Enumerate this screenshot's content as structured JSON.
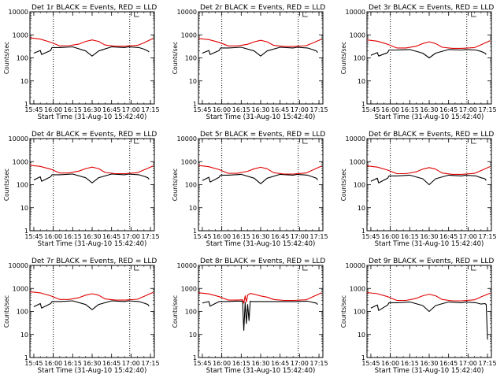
{
  "figure": {
    "background": "#ffffff",
    "event_color": "#000000",
    "lld_color": "#e00000"
  },
  "chart_data": [
    {
      "type": "line",
      "title": "Det 1r BLACK = Events, RED = LLD",
      "xlabel": "Start Time (31-Aug-10 15:42:40)",
      "ylabel": "Counts/sec",
      "yscale": "log",
      "ylim": [
        1,
        10000
      ],
      "xticklabels": [
        "15:45",
        "16:00",
        "16:15",
        "16:30",
        "16:45",
        "17:00",
        "17:15"
      ],
      "yticklabels": [
        "1",
        "10",
        "100",
        "1000",
        "10000"
      ],
      "vlines": [
        "16:00",
        "16:59"
      ],
      "series": [
        {
          "name": "Events",
          "color": "#000000",
          "x": [
            "15:45",
            "15:50",
            "15:51",
            "15:58",
            "15:59",
            "16:05",
            "16:15",
            "16:25",
            "16:30",
            "16:35",
            "16:45",
            "16:55",
            "16:58",
            "17:06",
            "17:10",
            "17:13",
            "17:14"
          ],
          "y": [
            160,
            210,
            140,
            210,
            280,
            280,
            300,
            200,
            120,
            200,
            300,
            280,
            300,
            280,
            240,
            200,
            180
          ]
        },
        {
          "name": "LLD",
          "color": "#e00000",
          "x": [
            "15:42",
            "15:50",
            "15:58",
            "16:05",
            "16:12",
            "16:20",
            "16:25",
            "16:30",
            "16:35",
            "16:40",
            "16:48",
            "16:55",
            "17:05",
            "17:10",
            "17:17"
          ],
          "y": [
            750,
            650,
            480,
            330,
            340,
            400,
            520,
            600,
            520,
            360,
            320,
            320,
            350,
            450,
            700
          ]
        }
      ]
    },
    {
      "type": "line",
      "title": "Det 2r BLACK = Events, RED = LLD",
      "xlabel": "Start Time (31-Aug-10 15:42:40)",
      "ylabel": "Counts/sec",
      "yscale": "log",
      "ylim": [
        1,
        10000
      ],
      "xticklabels": [
        "15:45",
        "16:00",
        "16:15",
        "16:30",
        "16:45",
        "17:00",
        "17:15"
      ],
      "yticklabels": [
        "1",
        "10",
        "100",
        "1000",
        "10000"
      ],
      "vlines": [
        "16:00",
        "16:59"
      ],
      "series": [
        {
          "name": "Events",
          "color": "#000000",
          "x": [
            "15:45",
            "15:50",
            "15:51",
            "15:58",
            "15:59",
            "16:05",
            "16:15",
            "16:25",
            "16:30",
            "16:35",
            "16:45",
            "16:55",
            "16:58",
            "17:06",
            "17:10",
            "17:13",
            "17:14"
          ],
          "y": [
            160,
            210,
            140,
            210,
            270,
            270,
            290,
            200,
            120,
            200,
            290,
            270,
            290,
            270,
            230,
            200,
            170
          ]
        },
        {
          "name": "LLD",
          "color": "#e00000",
          "x": [
            "15:42",
            "15:50",
            "15:58",
            "16:05",
            "16:12",
            "16:20",
            "16:25",
            "16:30",
            "16:35",
            "16:40",
            "16:48",
            "16:55",
            "17:05",
            "17:10",
            "17:17"
          ],
          "y": [
            700,
            620,
            470,
            330,
            330,
            390,
            500,
            580,
            500,
            350,
            310,
            310,
            340,
            440,
            650
          ]
        }
      ]
    },
    {
      "type": "line",
      "title": "Det 3r BLACK = Events, RED = LLD",
      "xlabel": "Start Time (31-Aug-10 15:42:40)",
      "ylabel": "Counts/sec",
      "yscale": "log",
      "ylim": [
        1,
        10000
      ],
      "xticklabels": [
        "15:45",
        "16:00",
        "16:15",
        "16:30",
        "16:45",
        "17:00",
        "17:15"
      ],
      "yticklabels": [
        "1",
        "10",
        "100",
        "1000",
        "10000"
      ],
      "vlines": [
        "16:00",
        "16:59"
      ],
      "series": [
        {
          "name": "Events",
          "color": "#000000",
          "x": [
            "15:45",
            "15:50",
            "15:51",
            "15:58",
            "15:59",
            "16:05",
            "16:15",
            "16:25",
            "16:30",
            "16:35",
            "16:45",
            "16:55",
            "16:58",
            "17:06",
            "17:10",
            "17:13",
            "17:14"
          ],
          "y": [
            130,
            170,
            120,
            170,
            220,
            220,
            230,
            160,
            100,
            160,
            230,
            220,
            230,
            220,
            190,
            160,
            140
          ]
        },
        {
          "name": "LLD",
          "color": "#e00000",
          "x": [
            "15:42",
            "15:50",
            "15:58",
            "16:05",
            "16:12",
            "16:20",
            "16:25",
            "16:30",
            "16:35",
            "16:40",
            "16:48",
            "16:55",
            "17:05",
            "17:10",
            "17:17"
          ],
          "y": [
            600,
            530,
            390,
            270,
            270,
            320,
            420,
            500,
            420,
            290,
            260,
            260,
            280,
            370,
            560
          ]
        }
      ]
    },
    {
      "type": "line",
      "title": "Det 4r BLACK = Events, RED = LLD",
      "xlabel": "Start Time (31-Aug-10 15:42:40)",
      "ylabel": "Counts/sec",
      "yscale": "log",
      "ylim": [
        1,
        10000
      ],
      "xticklabels": [
        "15:45",
        "16:00",
        "16:15",
        "16:30",
        "16:45",
        "17:00",
        "17:15"
      ],
      "yticklabels": [
        "1",
        "10",
        "100",
        "1000",
        "10000"
      ],
      "vlines": [
        "16:00",
        "16:59"
      ],
      "series": [
        {
          "name": "Events",
          "color": "#000000",
          "x": [
            "15:45",
            "15:50",
            "15:51",
            "15:58",
            "15:59",
            "16:05",
            "16:15",
            "16:25",
            "16:30",
            "16:35",
            "16:45",
            "16:55",
            "16:58",
            "17:06",
            "17:10",
            "17:13",
            "17:14"
          ],
          "y": [
            160,
            220,
            140,
            220,
            270,
            270,
            290,
            200,
            120,
            200,
            290,
            270,
            290,
            270,
            230,
            200,
            170
          ]
        },
        {
          "name": "LLD",
          "color": "#e00000",
          "x": [
            "15:42",
            "15:50",
            "15:58",
            "16:05",
            "16:12",
            "16:20",
            "16:25",
            "16:30",
            "16:35",
            "16:40",
            "16:48",
            "16:55",
            "17:05",
            "17:10",
            "17:17"
          ],
          "y": [
            700,
            620,
            470,
            320,
            320,
            390,
            500,
            580,
            500,
            340,
            300,
            300,
            330,
            440,
            650
          ]
        }
      ]
    },
    {
      "type": "line",
      "title": "Det 5r BLACK = Events, RED = LLD",
      "xlabel": "Start Time (31-Aug-10 15:42:40)",
      "ylabel": "Counts/sec",
      "yscale": "log",
      "ylim": [
        1,
        10000
      ],
      "xticklabels": [
        "15:45",
        "16:00",
        "16:15",
        "16:30",
        "16:45",
        "17:00",
        "17:15"
      ],
      "yticklabels": [
        "1",
        "10",
        "100",
        "1000",
        "10000"
      ],
      "vlines": [
        "16:00",
        "16:59"
      ],
      "series": [
        {
          "name": "Events",
          "color": "#000000",
          "x": [
            "15:45",
            "15:50",
            "15:51",
            "15:58",
            "15:59",
            "16:05",
            "16:15",
            "16:25",
            "16:30",
            "16:35",
            "16:45",
            "16:55",
            "16:58",
            "17:06",
            "17:10",
            "17:13",
            "17:14"
          ],
          "y": [
            150,
            210,
            130,
            210,
            260,
            260,
            280,
            190,
            110,
            190,
            280,
            260,
            280,
            260,
            220,
            190,
            160
          ]
        },
        {
          "name": "LLD",
          "color": "#e00000",
          "x": [
            "15:42",
            "15:50",
            "15:58",
            "16:05",
            "16:12",
            "16:20",
            "16:25",
            "16:30",
            "16:35",
            "16:40",
            "16:48",
            "16:55",
            "17:05",
            "17:10",
            "17:17"
          ],
          "y": [
            680,
            600,
            450,
            310,
            310,
            380,
            490,
            570,
            490,
            330,
            290,
            290,
            320,
            430,
            640
          ]
        }
      ]
    },
    {
      "type": "line",
      "title": "Det 6r BLACK = Events, RED = LLD",
      "xlabel": "Start Time (31-Aug-10 15:42:40)",
      "ylabel": "Counts/sec",
      "yscale": "log",
      "ylim": [
        1,
        10000
      ],
      "xticklabels": [
        "15:45",
        "16:00",
        "16:15",
        "16:30",
        "16:45",
        "17:00",
        "17:15"
      ],
      "yticklabels": [
        "1",
        "10",
        "100",
        "1000",
        "10000"
      ],
      "vlines": [
        "16:00",
        "16:59"
      ],
      "series": [
        {
          "name": "Events",
          "color": "#000000",
          "x": [
            "15:45",
            "15:50",
            "15:51",
            "15:58",
            "15:59",
            "16:05",
            "16:15",
            "16:25",
            "16:30",
            "16:35",
            "16:45",
            "16:55",
            "16:58",
            "17:06",
            "17:10",
            "17:13",
            "17:14"
          ],
          "y": [
            140,
            190,
            120,
            190,
            240,
            240,
            260,
            180,
            100,
            180,
            260,
            240,
            260,
            240,
            200,
            180,
            150
          ]
        },
        {
          "name": "LLD",
          "color": "#e00000",
          "x": [
            "15:42",
            "15:50",
            "15:58",
            "16:05",
            "16:12",
            "16:20",
            "16:25",
            "16:30",
            "16:35",
            "16:40",
            "16:48",
            "16:55",
            "17:05",
            "17:10",
            "17:17"
          ],
          "y": [
            650,
            580,
            430,
            300,
            300,
            360,
            470,
            550,
            470,
            320,
            280,
            280,
            310,
            410,
            610
          ]
        }
      ]
    },
    {
      "type": "line",
      "title": "Det 7r BLACK = Events, RED = LLD",
      "xlabel": "Start Time (31-Aug-10 15:42:40)",
      "ylabel": "Counts/sec",
      "yscale": "log",
      "ylim": [
        1,
        10000
      ],
      "xticklabels": [
        "15:45",
        "16:00",
        "16:15",
        "16:30",
        "16:45",
        "17:00",
        "17:15"
      ],
      "yticklabels": [
        "1",
        "10",
        "100",
        "1000",
        "10000"
      ],
      "vlines": [
        "16:00",
        "16:59"
      ],
      "series": [
        {
          "name": "Events",
          "color": "#000000",
          "x": [
            "15:45",
            "15:50",
            "15:51",
            "15:58",
            "15:59",
            "16:05",
            "16:15",
            "16:25",
            "16:30",
            "16:35",
            "16:45",
            "16:55",
            "16:58",
            "17:06",
            "17:10",
            "17:13",
            "17:14"
          ],
          "y": [
            160,
            220,
            140,
            220,
            270,
            270,
            290,
            200,
            120,
            200,
            290,
            270,
            290,
            270,
            230,
            200,
            170
          ]
        },
        {
          "name": "LLD",
          "color": "#e00000",
          "x": [
            "15:42",
            "15:50",
            "15:58",
            "16:05",
            "16:12",
            "16:20",
            "16:25",
            "16:30",
            "16:35",
            "16:40",
            "16:48",
            "16:55",
            "17:05",
            "17:10",
            "17:17"
          ],
          "y": [
            720,
            640,
            480,
            330,
            330,
            400,
            510,
            590,
            510,
            350,
            310,
            310,
            340,
            450,
            670
          ]
        }
      ]
    },
    {
      "type": "line",
      "title": "Det 8r BLACK = Events, RED = LLD",
      "xlabel": "Start Time (31-Aug-10 15:42:40)",
      "ylabel": "Counts/sec",
      "yscale": "log",
      "ylim": [
        1,
        10000
      ],
      "xticklabels": [
        "15:45",
        "16:00",
        "16:15",
        "16:30",
        "16:45",
        "17:00",
        "17:15"
      ],
      "yticklabels": [
        "1",
        "10",
        "100",
        "1000",
        "10000"
      ],
      "vlines": [
        "16:00",
        "16:59"
      ],
      "series": [
        {
          "name": "Events",
          "color": "#000000",
          "x": [
            "15:45",
            "15:50",
            "15:51",
            "15:58",
            "15:59",
            "16:05",
            "16:10",
            "16:16",
            "16:17",
            "16:18",
            "16:19",
            "16:20",
            "16:21",
            "16:22",
            "16:23",
            "16:30",
            "16:45",
            "16:55",
            "16:58",
            "17:06",
            "17:10",
            "17:13",
            "17:14"
          ],
          "y": [
            230,
            270,
            170,
            270,
            270,
            270,
            280,
            280,
            15,
            250,
            30,
            200,
            40,
            280,
            270,
            270,
            270,
            270,
            270,
            280,
            250,
            230,
            200
          ]
        },
        {
          "name": "LLD",
          "color": "#e00000",
          "x": [
            "15:42",
            "15:50",
            "15:58",
            "16:05",
            "16:12",
            "16:16",
            "16:17",
            "16:18",
            "16:19",
            "16:20",
            "16:22",
            "16:25",
            "16:30",
            "16:35",
            "16:40",
            "16:48",
            "16:55",
            "17:05",
            "17:10",
            "17:17"
          ],
          "y": [
            650,
            580,
            440,
            310,
            310,
            320,
            230,
            480,
            260,
            520,
            600,
            560,
            470,
            420,
            330,
            300,
            300,
            320,
            430,
            640
          ]
        }
      ]
    },
    {
      "type": "line",
      "title": "Det 9r BLACK = Events, RED = LLD",
      "xlabel": "Start Time (31-Aug-10 15:42:40)",
      "ylabel": "Counts/sec",
      "yscale": "log",
      "ylim": [
        1,
        10000
      ],
      "xticklabels": [
        "15:45",
        "16:00",
        "16:15",
        "16:30",
        "16:45",
        "17:00",
        "17:15"
      ],
      "yticklabels": [
        "1",
        "10",
        "100",
        "1000",
        "10000"
      ],
      "vlines": [
        "16:00",
        "16:59"
      ],
      "series": [
        {
          "name": "Events",
          "color": "#000000",
          "x": [
            "15:45",
            "15:50",
            "15:51",
            "15:58",
            "15:59",
            "16:05",
            "16:15",
            "16:25",
            "16:30",
            "16:35",
            "16:45",
            "16:55",
            "16:58",
            "17:06",
            "17:10",
            "17:13",
            "17:14",
            "17:15"
          ],
          "y": [
            140,
            190,
            110,
            190,
            240,
            240,
            260,
            180,
            100,
            180,
            260,
            240,
            260,
            240,
            210,
            220,
            200,
            6
          ]
        },
        {
          "name": "LLD",
          "color": "#e00000",
          "x": [
            "15:42",
            "15:50",
            "15:58",
            "16:05",
            "16:12",
            "16:20",
            "16:25",
            "16:30",
            "16:35",
            "16:40",
            "16:48",
            "16:55",
            "17:05",
            "17:10",
            "17:17"
          ],
          "y": [
            660,
            590,
            440,
            300,
            300,
            370,
            480,
            560,
            480,
            330,
            290,
            290,
            320,
            430,
            620
          ]
        }
      ]
    }
  ]
}
